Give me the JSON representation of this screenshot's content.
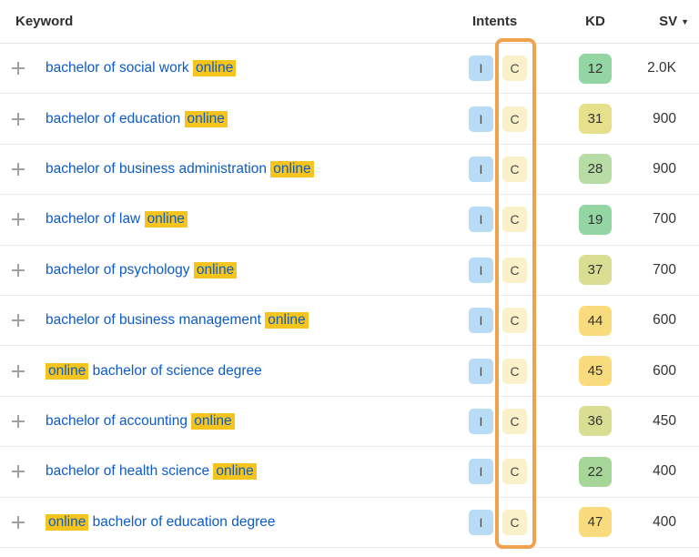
{
  "header": {
    "keyword": "Keyword",
    "intents": "Intents",
    "kd": "KD",
    "sv": "SV",
    "sv_sort": "descending"
  },
  "colors": {
    "link_blue": "#0d5bc5",
    "highlight_yellow": "#f5c51d",
    "annotation_orange": "#f0a24c",
    "intent_informational": "#b8dcf5",
    "intent_commercial": "#faf0c9"
  },
  "intent_colors": {
    "I": "#b8dcf5",
    "C": "#faf0c9"
  },
  "rows": [
    {
      "keyword_segments": [
        {
          "text": "bachelor of social work ",
          "hl": false
        },
        {
          "text": "online",
          "hl": true
        }
      ],
      "intents": [
        "I",
        "C"
      ],
      "kd": "12",
      "kd_color": "#93d5a3",
      "sv": "2.0K"
    },
    {
      "keyword_segments": [
        {
          "text": "bachelor of education ",
          "hl": false
        },
        {
          "text": "online",
          "hl": true
        }
      ],
      "intents": [
        "I",
        "C"
      ],
      "kd": "31",
      "kd_color": "#e5e089",
      "sv": "900"
    },
    {
      "keyword_segments": [
        {
          "text": "bachelor of business administration ",
          "hl": false
        },
        {
          "text": "online",
          "hl": true
        }
      ],
      "intents": [
        "I",
        "C"
      ],
      "kd": "28",
      "kd_color": "#b7dca5",
      "sv": "900"
    },
    {
      "keyword_segments": [
        {
          "text": "bachelor of law ",
          "hl": false
        },
        {
          "text": "online",
          "hl": true
        }
      ],
      "intents": [
        "I",
        "C"
      ],
      "kd": "19",
      "kd_color": "#93d5a3",
      "sv": "700"
    },
    {
      "keyword_segments": [
        {
          "text": "bachelor of psychology ",
          "hl": false
        },
        {
          "text": "online",
          "hl": true
        }
      ],
      "intents": [
        "I",
        "C"
      ],
      "kd": "37",
      "kd_color": "#d9de93",
      "sv": "700"
    },
    {
      "keyword_segments": [
        {
          "text": "bachelor of business management ",
          "hl": false
        },
        {
          "text": "online",
          "hl": true
        }
      ],
      "intents": [
        "I",
        "C"
      ],
      "kd": "44",
      "kd_color": "#f8db7d",
      "sv": "600"
    },
    {
      "keyword_segments": [
        {
          "text": "online",
          "hl": true
        },
        {
          "text": " bachelor of science degree",
          "hl": false
        }
      ],
      "intents": [
        "I",
        "C"
      ],
      "kd": "45",
      "kd_color": "#f8db7d",
      "sv": "600"
    },
    {
      "keyword_segments": [
        {
          "text": "bachelor of accounting ",
          "hl": false
        },
        {
          "text": "online",
          "hl": true
        }
      ],
      "intents": [
        "I",
        "C"
      ],
      "kd": "36",
      "kd_color": "#d9de93",
      "sv": "450"
    },
    {
      "keyword_segments": [
        {
          "text": "bachelor of health science ",
          "hl": false
        },
        {
          "text": "online",
          "hl": true
        }
      ],
      "intents": [
        "I",
        "C"
      ],
      "kd": "22",
      "kd_color": "#a7d699",
      "sv": "400"
    },
    {
      "keyword_segments": [
        {
          "text": "online",
          "hl": true
        },
        {
          "text": " bachelor of education degree",
          "hl": false
        }
      ],
      "intents": [
        "I",
        "C"
      ],
      "kd": "47",
      "kd_color": "#f8db7d",
      "sv": "400"
    }
  ]
}
